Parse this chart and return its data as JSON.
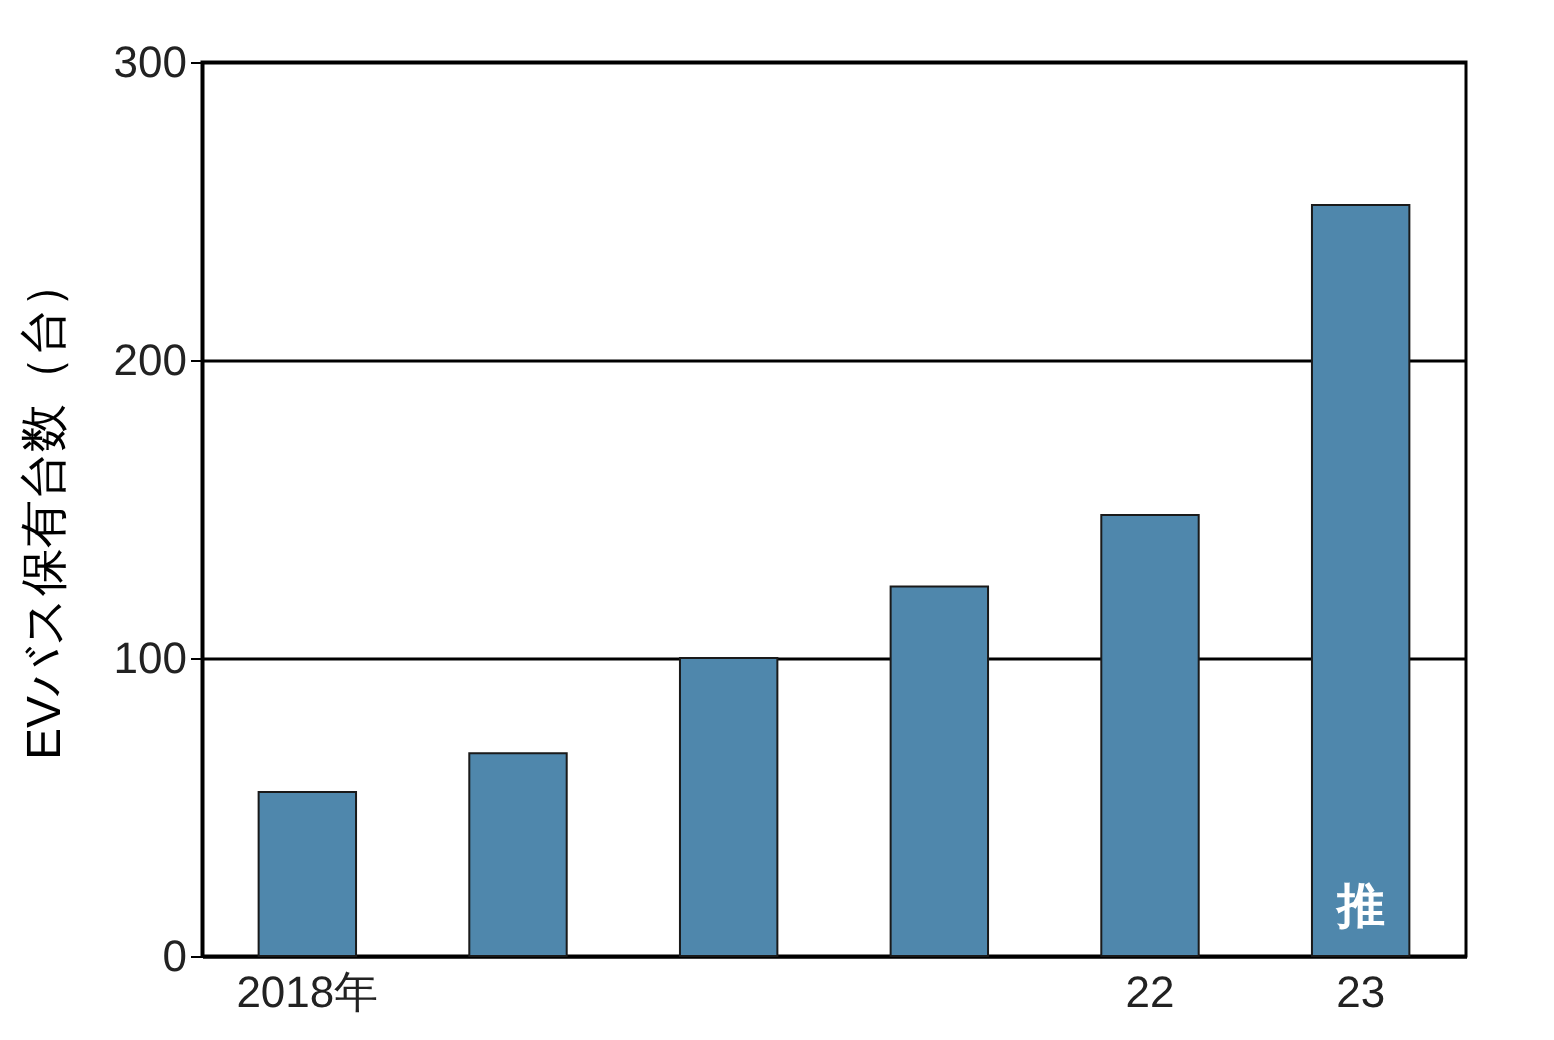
{
  "chart_data": {
    "type": "bar",
    "ylabel": "EVバス保有台数（台）",
    "categories": [
      "2018年",
      null,
      null,
      null,
      "22",
      "23"
    ],
    "values": [
      55,
      68,
      100,
      124,
      148,
      252
    ],
    "color": "#4f87ac",
    "ylim": [
      0,
      300
    ],
    "yticks": [
      0,
      100,
      200,
      300
    ],
    "grid": "y",
    "annotations": [
      "推"
    ]
  }
}
